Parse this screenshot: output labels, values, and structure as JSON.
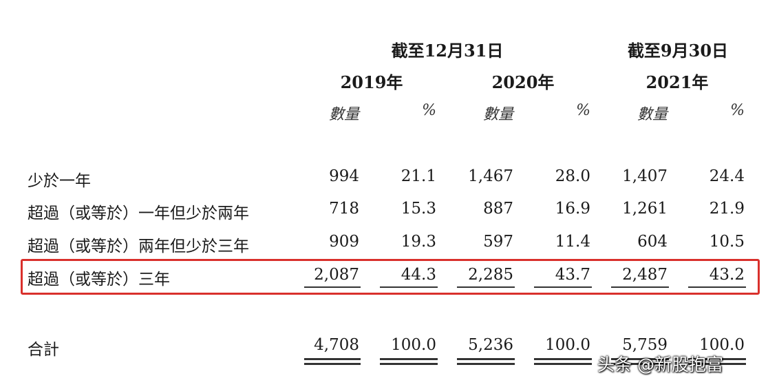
{
  "header": {
    "group1": "截至12月31日",
    "group2": "截至9月30日",
    "years": [
      "2019年",
      "2020年",
      "2021年"
    ],
    "sub_amount": "數量",
    "sub_pct": "%"
  },
  "rows": [
    {
      "label": "少於一年",
      "values": [
        "994",
        "21.1",
        "1,467",
        "28.0",
        "1,407",
        "24.4"
      ]
    },
    {
      "label": "超過（或等於）一年但少於兩年",
      "values": [
        "718",
        "15.3",
        "887",
        "16.9",
        "1,261",
        "21.9"
      ]
    },
    {
      "label": "超過（或等於）兩年但少於三年",
      "values": [
        "909",
        "19.3",
        "597",
        "11.4",
        "604",
        "10.5"
      ]
    },
    {
      "label": "超過（或等於）三年",
      "values": [
        "2,087",
        "44.3",
        "2,285",
        "43.7",
        "2,487",
        "43.2"
      ]
    }
  ],
  "total": {
    "label": "合計",
    "values": [
      "4,708",
      "100.0",
      "5,236",
      "100.0",
      "5,759",
      "100.0"
    ]
  },
  "watermark": "头条 @新股抱富",
  "highlight_color": "#d9302c"
}
